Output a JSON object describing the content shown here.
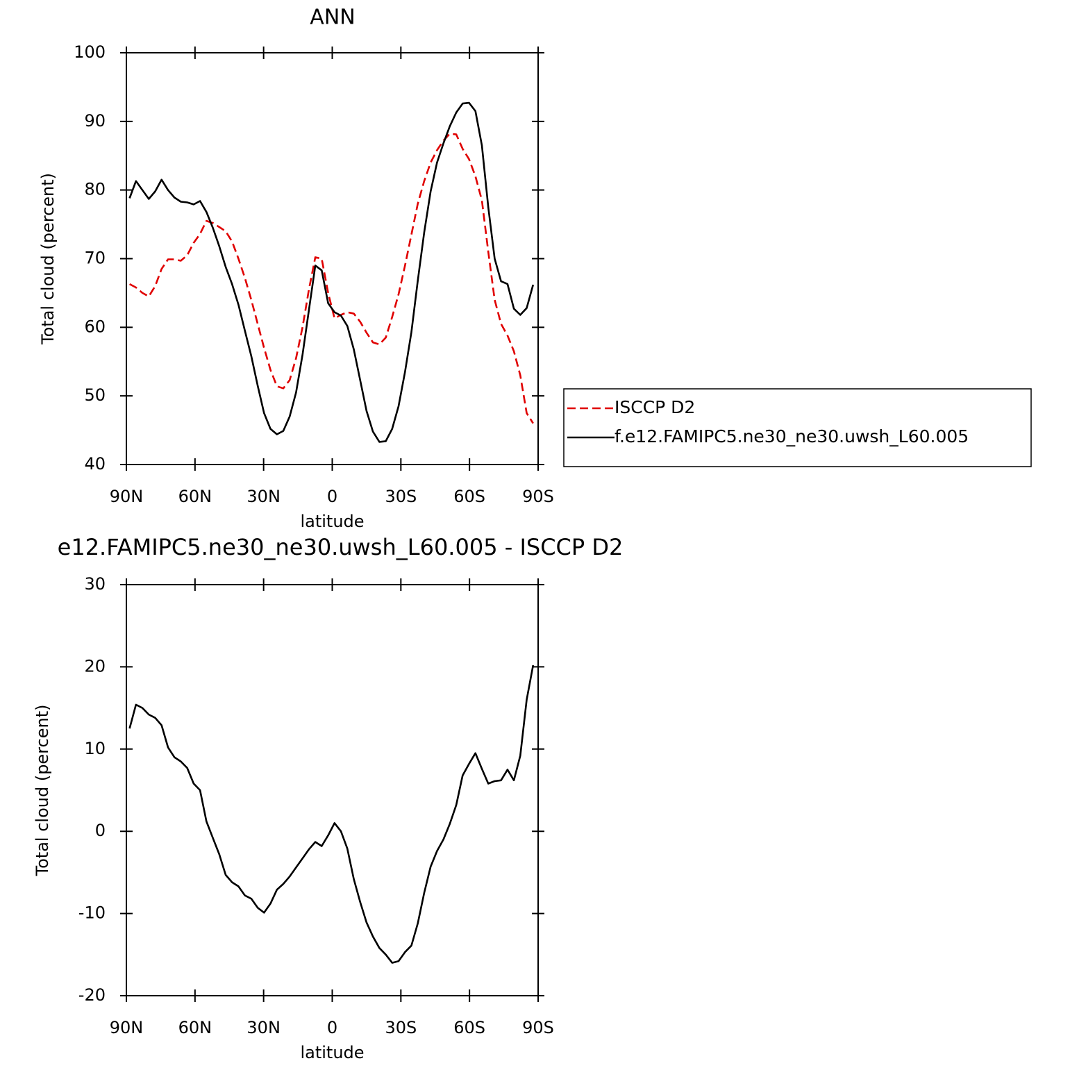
{
  "chart_data": [
    {
      "type": "line",
      "title": "ANN",
      "xlabel": "latitude",
      "ylabel": "Total cloud (percent)",
      "x": [
        88.6,
        85.8,
        83.0,
        80.2,
        77.4,
        74.6,
        71.8,
        69.0,
        66.2,
        63.4,
        60.6,
        57.8,
        55.0,
        52.2,
        49.4,
        46.6,
        43.8,
        41.0,
        38.2,
        35.4,
        32.6,
        29.8,
        27.0,
        24.2,
        21.4,
        18.6,
        15.8,
        13.0,
        10.2,
        7.4,
        4.6,
        1.8,
        -1.0,
        -3.8,
        -6.6,
        -9.4,
        -12.2,
        -15.0,
        -17.8,
        -20.6,
        -23.4,
        -26.2,
        -29.0,
        -31.8,
        -34.6,
        -37.4,
        -40.2,
        -43.0,
        -45.8,
        -48.6,
        -51.4,
        -54.2,
        -57.0,
        -59.8,
        -62.6,
        -65.4,
        -68.2,
        -71.0,
        -73.8,
        -76.6,
        -79.4,
        -82.2,
        -85.0,
        -87.8
      ],
      "series": [
        {
          "name": "ISCCP D2",
          "color": "#e00000",
          "dash": true,
          "values": [
            66.3,
            65.8,
            65.0,
            64.5,
            66.0,
            68.5,
            69.9,
            69.9,
            69.7,
            70.5,
            72.3,
            73.6,
            75.5,
            75.2,
            74.6,
            74.0,
            72.5,
            70.0,
            67.2,
            64.0,
            60.5,
            57.0,
            53.8,
            51.4,
            51.1,
            52.3,
            55.5,
            60.0,
            65.5,
            70.2,
            70.0,
            65.0,
            61.3,
            61.8,
            62.2,
            62.0,
            60.8,
            59.2,
            57.8,
            57.5,
            58.5,
            61.5,
            64.8,
            69.0,
            73.5,
            78.0,
            81.3,
            84.0,
            85.8,
            87.2,
            88.2,
            88.1,
            86.0,
            84.5,
            82.0,
            78.5,
            71.0,
            64.0,
            60.5,
            58.8,
            56.5,
            53.0,
            47.5,
            46.0
          ]
        },
        {
          "name": "f.e12.FAMIPC5.ne30_ne30.uwsh_L60.005",
          "color": "#000000",
          "dash": false,
          "values": [
            78.8,
            81.3,
            80.0,
            78.7,
            79.8,
            81.5,
            80.0,
            78.9,
            78.3,
            78.2,
            77.9,
            78.4,
            76.8,
            74.5,
            71.8,
            68.8,
            66.3,
            63.3,
            59.5,
            55.8,
            51.5,
            47.5,
            45.2,
            44.4,
            44.9,
            47.0,
            50.5,
            56.0,
            62.5,
            69.0,
            68.3,
            63.5,
            62.2,
            61.7,
            60.2,
            56.8,
            52.3,
            47.8,
            44.8,
            43.3,
            43.4,
            45.2,
            48.5,
            53.5,
            59.3,
            66.8,
            73.8,
            79.8,
            84.0,
            86.8,
            89.3,
            91.3,
            92.6,
            92.7,
            91.5,
            86.5,
            77.5,
            70.0,
            66.7,
            66.3,
            62.7,
            61.8,
            62.8,
            66.2
          ]
        }
      ],
      "xlim": [
        90,
        -90
      ],
      "xticks": [
        {
          "value": 90,
          "label": "90N"
        },
        {
          "value": 60,
          "label": "60N"
        },
        {
          "value": 30,
          "label": "30N"
        },
        0,
        {
          "value": -30,
          "label": "30S"
        },
        {
          "value": -60,
          "label": "60S"
        },
        {
          "value": -90,
          "label": "90S"
        }
      ],
      "ylim": [
        40,
        100
      ],
      "yticks": [
        40,
        50,
        60,
        70,
        80,
        90,
        100
      ],
      "legend": "right"
    },
    {
      "type": "line",
      "title": "e12.FAMIPC5.ne30_ne30.uwsh_L60.005 - ISCCP D2",
      "xlabel": "latitude",
      "ylabel": "Total cloud (percent)",
      "x": [
        88.6,
        85.8,
        83.0,
        80.2,
        77.4,
        74.6,
        71.8,
        69.0,
        66.2,
        63.4,
        60.6,
        57.8,
        55.0,
        52.2,
        49.4,
        46.6,
        43.8,
        41.0,
        38.2,
        35.4,
        32.6,
        29.8,
        27.0,
        24.2,
        21.4,
        18.6,
        15.8,
        13.0,
        10.2,
        7.4,
        4.6,
        1.8,
        -1.0,
        -3.8,
        -6.6,
        -9.4,
        -12.2,
        -15.0,
        -17.8,
        -20.6,
        -23.4,
        -26.2,
        -29.0,
        -31.8,
        -34.6,
        -37.4,
        -40.2,
        -43.0,
        -45.8,
        -48.6,
        -51.4,
        -54.2,
        -57.0,
        -59.8,
        -62.6,
        -65.4,
        -68.2,
        -71.0,
        -73.8,
        -76.6,
        -79.4,
        -82.2,
        -85.0,
        -87.8
      ],
      "series": [
        {
          "color": "#000000",
          "dash": false,
          "values": [
            12.5,
            15.4,
            15.0,
            14.2,
            13.8,
            12.9,
            10.2,
            9.0,
            8.5,
            7.7,
            5.8,
            5.0,
            1.2,
            -0.8,
            -2.8,
            -5.3,
            -6.2,
            -6.7,
            -7.8,
            -8.2,
            -9.3,
            -9.9,
            -8.8,
            -7.1,
            -6.4,
            -5.5,
            -4.4,
            -3.3,
            -2.2,
            -1.3,
            -1.8,
            -0.5,
            1.0,
            0.0,
            -2.1,
            -5.8,
            -8.6,
            -11.1,
            -12.8,
            -14.2,
            -15.0,
            -16.0,
            -15.8,
            -14.7,
            -13.9,
            -11.2,
            -7.5,
            -4.3,
            -2.4,
            -1.0,
            0.9,
            3.2,
            6.8,
            8.2,
            9.5,
            7.6,
            5.8,
            6.1,
            6.2,
            7.5,
            6.2,
            9.2,
            16.0,
            20.2
          ]
        }
      ],
      "xlim": [
        90,
        -90
      ],
      "xticks": [
        {
          "value": 90,
          "label": "90N"
        },
        {
          "value": 60,
          "label": "60N"
        },
        {
          "value": 30,
          "label": "30N"
        },
        0,
        {
          "value": -30,
          "label": "30S"
        },
        {
          "value": -60,
          "label": "60S"
        },
        {
          "value": -90,
          "label": "90S"
        }
      ],
      "ylim": [
        -20,
        30
      ],
      "yticks": [
        -20,
        -10,
        0,
        10,
        20,
        30
      ]
    }
  ]
}
